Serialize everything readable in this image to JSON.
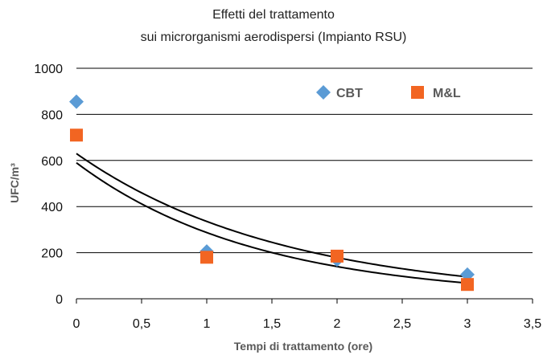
{
  "chart_data": {
    "type": "scatter",
    "title_line1": "Effetti del trattamento",
    "title_line2": "sui microrganismi aerodispersi (Impianto RSU)",
    "xlabel": "Tempi di trattamento (ore)",
    "ylabel": "UFC/m³",
    "xlim": [
      0,
      3.5
    ],
    "ylim": [
      0,
      1000
    ],
    "x_ticks": [
      "0",
      "0,5",
      "1",
      "1,5",
      "2",
      "2,5",
      "3",
      "3,5"
    ],
    "y_ticks": [
      "0",
      "200",
      "400",
      "600",
      "800",
      "1000"
    ],
    "grid": "horizontal",
    "legend_position": "top-right",
    "series": [
      {
        "name": "CBT",
        "marker": "diamond",
        "color": "#5B9BD5",
        "x": [
          0,
          1,
          2,
          3
        ],
        "y": [
          855,
          205,
          170,
          105
        ]
      },
      {
        "name": "M&L",
        "marker": "square",
        "color": "#F26522",
        "x": [
          0,
          1,
          2,
          3
        ],
        "y": [
          710,
          180,
          185,
          62
        ]
      }
    ],
    "trendlines": [
      {
        "type": "exponential",
        "a": 630,
        "b": -0.63,
        "color": "#000000"
      },
      {
        "type": "exponential",
        "a": 590,
        "b": -0.72,
        "color": "#000000"
      }
    ]
  }
}
